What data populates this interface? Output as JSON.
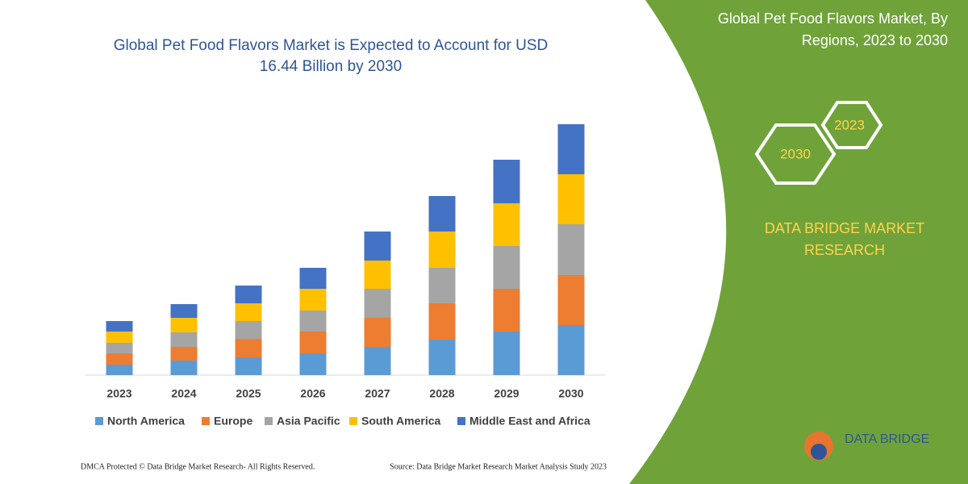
{
  "chart_data": {
    "type": "stacked-bar",
    "title": [
      "Global Pet Food Flavors Market is Expected to Account for USD",
      "16.44 Billion by 2030"
    ],
    "categories": [
      "2023",
      "2024",
      "2025",
      "2026",
      "2027",
      "2028",
      "2029",
      "2030"
    ],
    "series": [
      {
        "name": "North America",
        "color": "#5b9bd5",
        "values": [
          13,
          18,
          22,
          27,
          35,
          44,
          54,
          62
        ]
      },
      {
        "name": "Europe",
        "color": "#ed7d31",
        "values": [
          14,
          17,
          23,
          27,
          36,
          45,
          53,
          62
        ]
      },
      {
        "name": "Asia Pacific",
        "color": "#a5a5a5",
        "values": [
          13,
          18,
          22,
          26,
          36,
          44,
          53,
          63
        ]
      },
      {
        "name": "South America",
        "color": "#ffc000",
        "values": [
          14,
          18,
          22,
          27,
          35,
          45,
          53,
          62
        ]
      },
      {
        "name": "Middle East and Africa",
        "color": "#4472c4",
        "values": [
          13,
          17,
          22,
          26,
          36,
          44,
          54,
          62
        ]
      }
    ],
    "ylim": [
      0,
      320
    ]
  },
  "panel": {
    "title": [
      "Global Pet Food Flavors Market, By",
      "Regions, 2023 to 2030"
    ],
    "hex_a": "2023",
    "hex_b": "2030",
    "brand": [
      "DATA BRIDGE MARKET",
      "RESEARCH"
    ],
    "logo": "DATA BRIDGE"
  },
  "footer": {
    "left": "DMCA Protected © Data Bridge Market Research-  All Rights Reserved.",
    "right": "Source: Data Bridge Market Research  Market Analysis Study 2023"
  }
}
